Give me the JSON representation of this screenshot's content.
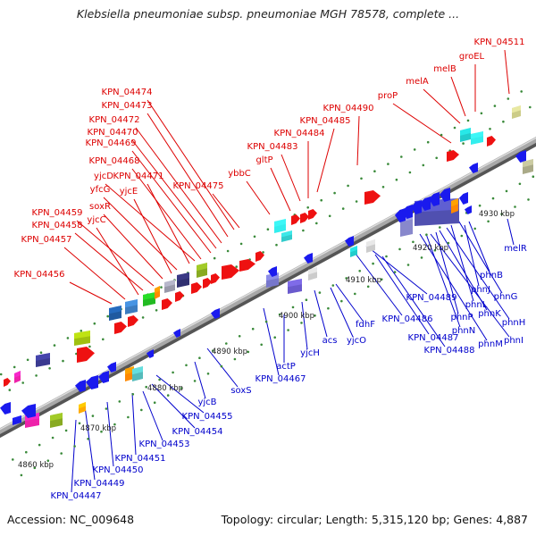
{
  "title": "Klebsiella pneumoniae subsp. pneumoniae MGH 78578, complete ...",
  "footer": {
    "accession": "Accession: NC_009648",
    "stats": "Topology: circular; Length: 5,315,120 bp; Genes: 4,887"
  },
  "colors": {
    "forward_label": "#dd0000",
    "reverse_label": "#0000cc",
    "backbone": "#8c8c8c"
  },
  "ticks": [
    {
      "label": "4860 kbp"
    },
    {
      "label": "4870 kbp"
    },
    {
      "label": "4880 kbp"
    },
    {
      "label": "4890 kbp"
    },
    {
      "label": "4900 kbp"
    },
    {
      "label": "4910 kbp"
    },
    {
      "label": "4920 kbp"
    },
    {
      "label": "4930 kbp"
    }
  ],
  "forward_labels": [
    "KPN_04511",
    "groEL",
    "melB",
    "melA",
    "proP",
    "KPN_04490",
    "KPN_04485",
    "KPN_04484",
    "KPN_04483",
    "gltP",
    "ybbC",
    "KPN_04475",
    "KPN_04474",
    "KPN_04473",
    "KPN_04472",
    "KPN_04470",
    "KPN_04469",
    "KPN_04468",
    "yjcD",
    "KPN_04471",
    "yfcG",
    "yjcE",
    "soxR",
    "KPN_04459",
    "KPN_04458",
    "yjcC",
    "KPN_04457",
    "KPN_04456"
  ],
  "reverse_labels": [
    "melR",
    "phnB",
    "phnJ",
    "phnG",
    "phnL",
    "phnH",
    "phnK",
    "phnP",
    "phnI",
    "phnN",
    "phnM",
    "KPN_04489",
    "KPN_04486",
    "KPN_04487",
    "KPN_04488",
    "fdhF",
    "yjcO",
    "acs",
    "yjcH",
    "actP",
    "KPN_04467",
    "soxS",
    "yjcB",
    "KPN_04455",
    "KPN_04454",
    "KPN_04453",
    "KPN_04451",
    "KPN_04450",
    "KPN_04449",
    "KPN_04447"
  ]
}
